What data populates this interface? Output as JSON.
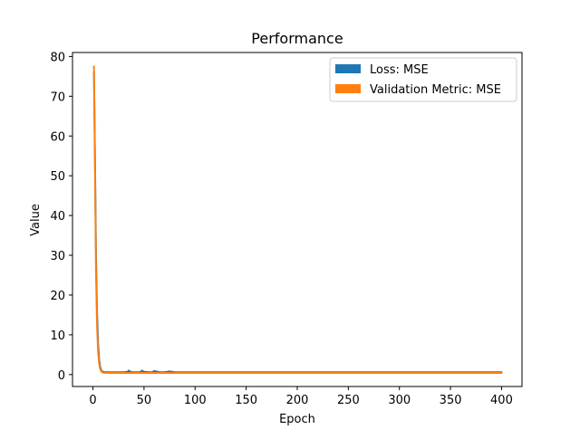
{
  "chart_data": {
    "type": "line",
    "title": "Performance",
    "xlabel": "Epoch",
    "ylabel": "Value",
    "xlim": [
      -20,
      420
    ],
    "ylim": [
      -3,
      81
    ],
    "xticks": [
      0,
      50,
      100,
      150,
      200,
      250,
      300,
      350,
      400
    ],
    "yticks": [
      0,
      10,
      20,
      30,
      40,
      50,
      60,
      70,
      80
    ],
    "grid": false,
    "legend_position": "top-right",
    "series": [
      {
        "name": "Loss: MSE",
        "color": "#1f77b4",
        "x": [
          1,
          2,
          3,
          4,
          5,
          6,
          7,
          8,
          9,
          10,
          12,
          15,
          20,
          30,
          34,
          35,
          36,
          38,
          45,
          47,
          48,
          50,
          55,
          58,
          60,
          65,
          70,
          75,
          80,
          90,
          100,
          150,
          200,
          250,
          300,
          350,
          400
        ],
        "values": [
          76.0,
          55.0,
          30.0,
          16.0,
          8.0,
          4.0,
          2.0,
          1.2,
          0.8,
          0.7,
          0.6,
          0.6,
          0.6,
          0.6,
          0.7,
          1.0,
          0.8,
          0.6,
          0.6,
          0.7,
          1.0,
          0.7,
          0.6,
          0.6,
          0.9,
          0.6,
          0.6,
          0.8,
          0.6,
          0.6,
          0.6,
          0.6,
          0.6,
          0.6,
          0.6,
          0.6,
          0.6
        ]
      },
      {
        "name": "Validation Metric: MSE",
        "color": "#ff7f0e",
        "x": [
          1,
          2,
          3,
          4,
          5,
          6,
          7,
          8,
          9,
          10,
          12,
          15,
          20,
          30,
          50,
          100,
          150,
          200,
          250,
          300,
          350,
          400
        ],
        "values": [
          77.5,
          52.0,
          26.0,
          12.5,
          6.0,
          3.0,
          1.5,
          0.9,
          0.6,
          0.5,
          0.45,
          0.4,
          0.4,
          0.4,
          0.4,
          0.4,
          0.4,
          0.4,
          0.4,
          0.4,
          0.4,
          0.4
        ]
      }
    ]
  }
}
